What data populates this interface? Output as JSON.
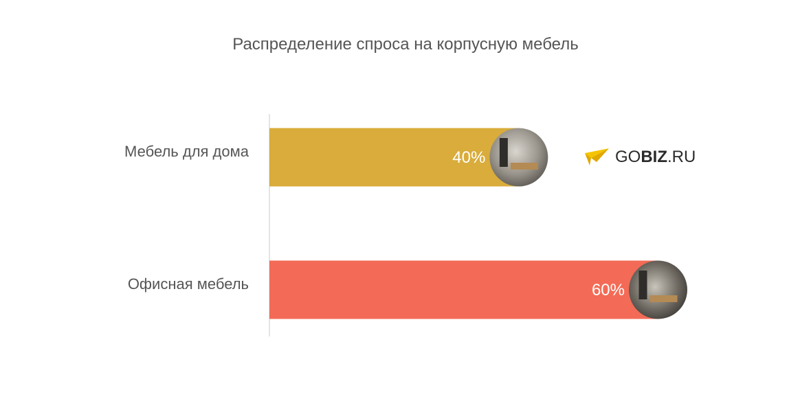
{
  "chart_data": {
    "type": "bar",
    "orientation": "horizontal",
    "title": "Распределение спроса на корпусную мебель",
    "categories": [
      "Мебель для дома",
      "Офисная мебель"
    ],
    "values": [
      40,
      60
    ],
    "value_labels": [
      "40%",
      "60%"
    ],
    "xlim": [
      0,
      60
    ],
    "colors": [
      "#d9ac3b",
      "#f36b56"
    ],
    "grid": false,
    "legend": "none"
  },
  "logo": {
    "prefix": "GO",
    "bold": "BIZ",
    "suffix": ".RU",
    "icon": "paper-plane-icon",
    "colors": {
      "plane_light": "#f5c400",
      "plane_dark": "#e0a800"
    }
  }
}
